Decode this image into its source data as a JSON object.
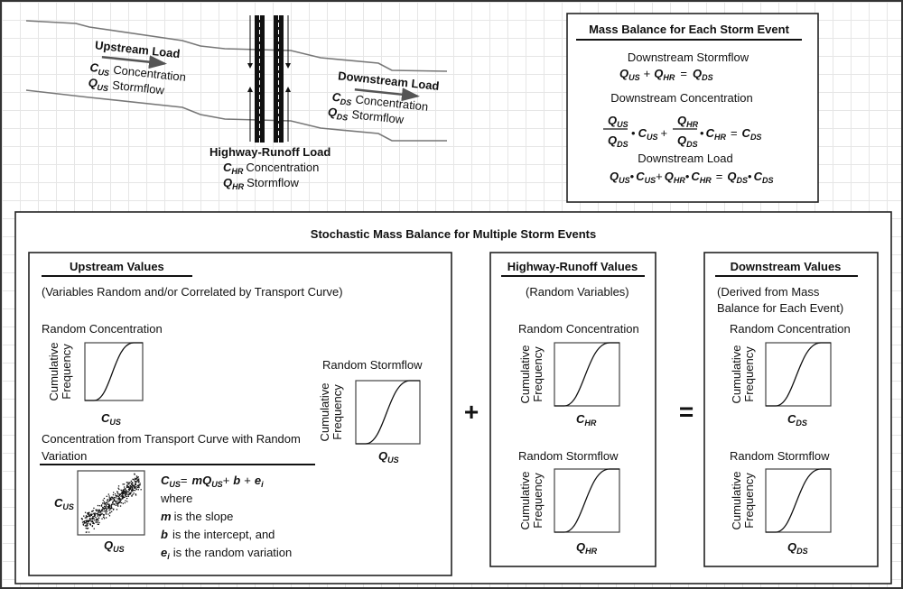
{
  "symbols": {
    "Q": "Q",
    "C": "C",
    "US": "US",
    "HR": "HR",
    "DS": "DS",
    "plus": "+",
    "eq": "=",
    "dot": "•"
  },
  "schematic": {
    "upstream": {
      "title": "Upstream Load",
      "concentration": "Concentration",
      "stormflow": "Stormflow"
    },
    "downstream": {
      "title": "Downstream Load",
      "concentration": "Concentration",
      "stormflow": "Stormflow"
    },
    "highway": {
      "title": "Highway-Runoff Load",
      "concentration": "Concentration",
      "stormflow": "Stormflow"
    }
  },
  "mass_balance": {
    "title": "Mass Balance for Each Storm Event",
    "stormflow_heading": "Downstream Stormflow",
    "concentration_heading": "Downstream Concentration",
    "load_heading": "Downstream Load"
  },
  "stochastic": {
    "title": "Stochastic Mass Balance for Multiple Storm Events",
    "cumulative": "Cumulative",
    "frequency": "Frequency",
    "random_concentration": "Random Concentration",
    "random_stormflow": "Random Stormflow",
    "plus_sign": "+",
    "equals_sign": "=",
    "upstream": {
      "title": "Upstream Values",
      "subtitle": "(Variables Random and/or Correlated by Transport Curve)",
      "transport_heading_1": "Concentration from Transport Curve with Random",
      "transport_heading_2": "Variation",
      "eq_m": "m",
      "eq_b": "b",
      "eq_e": "e",
      "eq_i": "i",
      "where": "where",
      "m_desc": "is the slope",
      "b_desc": "is the intercept, and",
      "e_desc": "is the random variation"
    },
    "highway": {
      "title": "Highway-Runoff Values",
      "subtitle": "(Random Variables)"
    },
    "downstream": {
      "title": "Downstream Values",
      "subtitle_1": "(Derived from Mass",
      "subtitle_2": "Balance for Each Event)"
    }
  }
}
